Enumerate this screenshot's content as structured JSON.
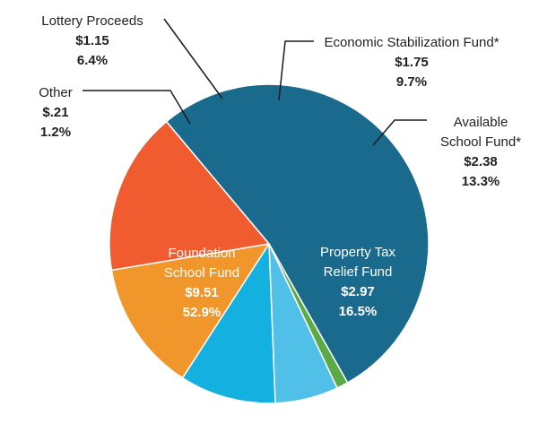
{
  "chart_data": {
    "type": "pie",
    "unit": "$",
    "slices": [
      {
        "name": "Foundation School Fund",
        "name_lines": [
          "Foundation",
          "School Fund"
        ],
        "value": 9.51,
        "value_label": "$9.51",
        "percent": 52.9,
        "percent_label": "52.9%",
        "color": "#1a6a8e"
      },
      {
        "name": "Other",
        "name_lines": [
          "Other"
        ],
        "value": 0.21,
        "value_label": "$.21",
        "percent": 1.2,
        "percent_label": "1.2%",
        "color": "#5aab46"
      },
      {
        "name": "Lottery Proceeds",
        "name_lines": [
          "Lottery Proceeds"
        ],
        "value": 1.15,
        "value_label": "$1.15",
        "percent": 6.4,
        "percent_label": "6.4%",
        "color": "#50c0e9"
      },
      {
        "name": "Economic Stabilization Fund*",
        "name_lines": [
          "Economic Stabilization Fund*"
        ],
        "value": 1.75,
        "value_label": "$1.75",
        "percent": 9.7,
        "percent_label": "9.7%",
        "color": "#13b0e0"
      },
      {
        "name": "Available School Fund*",
        "name_lines": [
          "Available",
          "School Fund*"
        ],
        "value": 2.38,
        "value_label": "$2.38",
        "percent": 13.3,
        "percent_label": "13.3%",
        "color": "#f0962a"
      },
      {
        "name": "Property Tax Relief Fund",
        "name_lines": [
          "Property Tax",
          "Relief Fund"
        ],
        "value": 2.97,
        "value_label": "$2.97",
        "percent": 16.5,
        "percent_label": "16.5%",
        "color": "#f05c30"
      }
    ]
  }
}
